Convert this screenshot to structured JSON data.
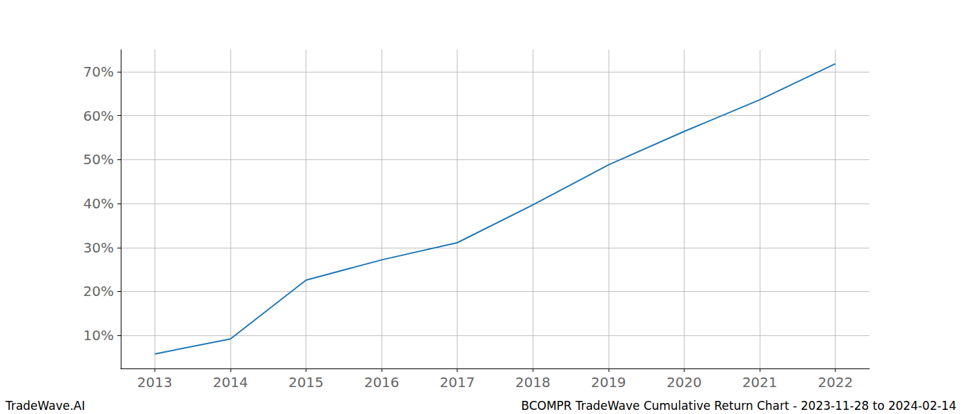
{
  "chart_data": {
    "type": "line",
    "x": [
      2013,
      2014,
      2015,
      2016,
      2017,
      2018,
      2019,
      2020,
      2021,
      2022
    ],
    "values": [
      5.8,
      9.2,
      22.6,
      27.2,
      31.1,
      39.7,
      48.8,
      56.4,
      63.6,
      71.8
    ],
    "color": "#1f77b4",
    "xlim": [
      2012.55,
      2022.45
    ],
    "xticks": [
      2013,
      2014,
      2015,
      2016,
      2017,
      2018,
      2019,
      2020,
      2021,
      2022
    ],
    "ylim": [
      2.5,
      75
    ],
    "yticks": [
      {
        "value": 10,
        "label": "10%"
      },
      {
        "value": 20,
        "label": "20%"
      },
      {
        "value": 30,
        "label": "30%"
      },
      {
        "value": 40,
        "label": "40%"
      },
      {
        "value": 50,
        "label": "50%"
      },
      {
        "value": 60,
        "label": "60%"
      },
      {
        "value": 70,
        "label": "70%"
      }
    ],
    "grid": true,
    "annotations": [
      "TradeWave.AI",
      "BCOMPR TradeWave Cumulative Return Chart - 2023-11-28 to 2024-02-14"
    ]
  }
}
